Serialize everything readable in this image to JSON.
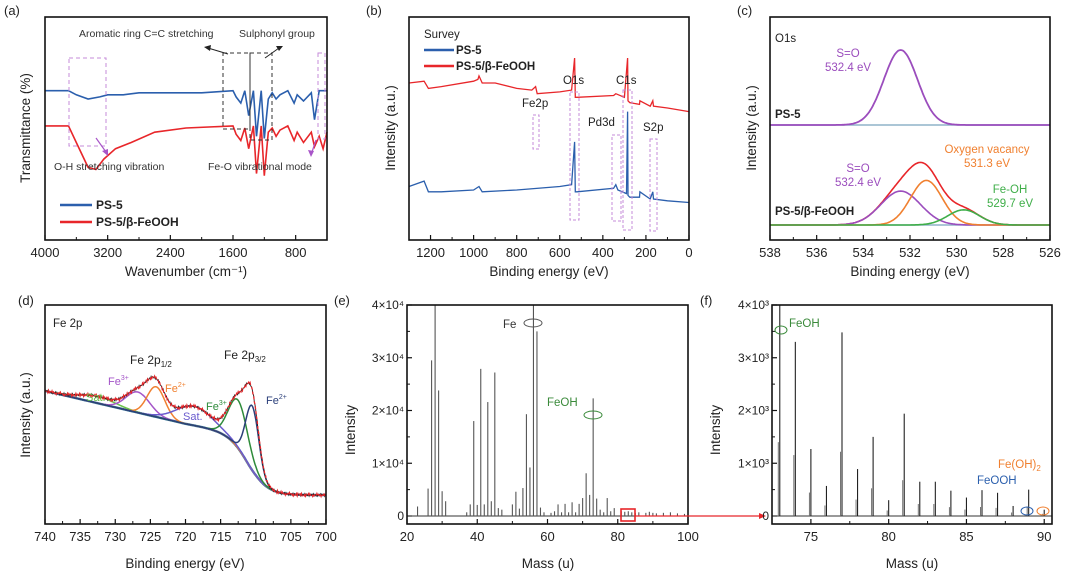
{
  "chart_data": [
    {
      "id": "a",
      "panel_label": "(a)",
      "type": "line",
      "title": "",
      "xlabel": "Wavenumber (cm⁻¹)",
      "ylabel": "Transmittance (%)",
      "xlim": [
        4000,
        400
      ],
      "xticks": [
        4000,
        3200,
        2400,
        1600,
        800
      ],
      "legend": {
        "placement": "bottom-left",
        "entries": [
          {
            "name": "PS-5",
            "color": "#2b5fad"
          },
          {
            "name": "PS-5/β-FeOOH",
            "color": "#e8262a"
          }
        ]
      },
      "series": [
        {
          "name": "PS-5",
          "color": "#2b5fad",
          "x": [
            4000,
            3700,
            3600,
            3450,
            3300,
            3200,
            3000,
            2800,
            2400,
            2000,
            1600,
            1560,
            1500,
            1450,
            1400,
            1340,
            1300,
            1240,
            1200,
            1150,
            1100,
            1050,
            1000,
            900,
            820,
            780,
            700,
            600,
            560,
            500,
            450,
            400
          ],
          "y": [
            0.72,
            0.72,
            0.7,
            0.68,
            0.69,
            0.7,
            0.7,
            0.71,
            0.71,
            0.71,
            0.72,
            0.69,
            0.66,
            0.72,
            0.6,
            0.72,
            0.5,
            0.72,
            0.49,
            0.68,
            0.71,
            0.68,
            0.7,
            0.72,
            0.66,
            0.7,
            0.67,
            0.71,
            0.58,
            0.72,
            0.72,
            0.72
          ]
        },
        {
          "name": "PS-5/β-FeOOH",
          "color": "#e8262a",
          "x": [
            4000,
            3700,
            3600,
            3450,
            3350,
            3250,
            3100,
            2900,
            2600,
            2200,
            1600,
            1560,
            1500,
            1450,
            1400,
            1340,
            1300,
            1240,
            1200,
            1150,
            1100,
            1050,
            1000,
            900,
            820,
            780,
            700,
            600,
            560,
            500,
            450,
            400
          ],
          "y": [
            0.55,
            0.55,
            0.47,
            0.35,
            0.34,
            0.39,
            0.44,
            0.47,
            0.52,
            0.54,
            0.55,
            0.51,
            0.48,
            0.54,
            0.44,
            0.55,
            0.32,
            0.55,
            0.31,
            0.52,
            0.54,
            0.5,
            0.53,
            0.55,
            0.48,
            0.52,
            0.47,
            0.52,
            0.45,
            0.5,
            0.44,
            0.52
          ]
        }
      ],
      "annotations": [
        "Aromatic ring C=C stretching",
        "Sulphonyl group",
        "O-H stretching vibration",
        "Fe-O vibrational mode"
      ]
    },
    {
      "id": "b",
      "panel_label": "(b)",
      "type": "line",
      "title": "Survey",
      "xlabel": "Binding energy (eV)",
      "ylabel": "Intensity (a.u.)",
      "xlim": [
        1300,
        0
      ],
      "xticks": [
        1200,
        1000,
        800,
        600,
        400,
        200,
        0
      ],
      "legend": {
        "placement": "top-left",
        "entries": [
          {
            "name": "PS-5",
            "color": "#2b5fad"
          },
          {
            "name": "PS-5/β-FeOOH",
            "color": "#e8262a"
          }
        ]
      },
      "series": [
        {
          "name": "PS-5",
          "color": "#2b5fad",
          "x": [
            1300,
            1230,
            1210,
            1150,
            1000,
            975,
            960,
            800,
            600,
            545,
            531,
            528,
            520,
            350,
            340,
            330,
            290,
            285,
            283,
            275,
            230,
            228,
            180,
            168,
            165,
            100,
            0
          ],
          "y": [
            0.3,
            0.33,
            0.27,
            0.27,
            0.28,
            0.3,
            0.27,
            0.28,
            0.3,
            0.31,
            0.55,
            0.27,
            0.27,
            0.29,
            0.31,
            0.28,
            0.26,
            0.72,
            0.25,
            0.24,
            0.24,
            0.27,
            0.23,
            0.27,
            0.23,
            0.22,
            0.21
          ]
        },
        {
          "name": "PS-5/β-FeOOH",
          "color": "#e8262a",
          "x": [
            1300,
            1230,
            1210,
            1150,
            1000,
            980,
            975,
            960,
            900,
            800,
            730,
            712,
            705,
            600,
            545,
            531,
            528,
            520,
            350,
            340,
            300,
            285,
            283,
            275,
            230,
            228,
            180,
            168,
            165,
            100,
            0
          ],
          "y": [
            0.88,
            0.89,
            0.85,
            0.86,
            0.89,
            0.9,
            0.92,
            0.88,
            0.88,
            0.85,
            0.84,
            0.86,
            0.82,
            0.83,
            0.84,
            1.02,
            0.8,
            0.8,
            0.81,
            0.82,
            0.8,
            1.02,
            0.78,
            0.77,
            0.76,
            0.78,
            0.75,
            0.78,
            0.75,
            0.74,
            0.72
          ]
        }
      ],
      "annotations": [
        "Fe2p",
        "O1s",
        "Pd3d",
        "C1s",
        "S2p"
      ]
    },
    {
      "id": "c",
      "panel_label": "(c)",
      "type": "line",
      "title": "O1s",
      "xlabel": "Binding energy (eV)",
      "ylabel": "Intensity (a.u.)",
      "xlim": [
        538,
        526
      ],
      "xticks": [
        538,
        536,
        534,
        532,
        530,
        528,
        526
      ],
      "series": [
        {
          "name": "PS-5 S=O",
          "color": "#9b4dbd",
          "center": 532.4,
          "height": 0.82,
          "fwhm": 1.7
        },
        {
          "name": "PS-5/β-FeOOH S=O",
          "color": "#9b4dbd",
          "center": 532.4,
          "height": 0.38,
          "fwhm": 2.0
        },
        {
          "name": "PS-5/β-FeOOH Oxygen vacancy",
          "color": "#f08030",
          "center": 531.3,
          "height": 0.5,
          "fwhm": 1.6
        },
        {
          "name": "PS-5/β-FeOOH Fe-OH",
          "color": "#3fae49",
          "center": 529.7,
          "height": 0.17,
          "fwhm": 1.6
        }
      ],
      "annotations": [
        {
          "text": "S=O",
          "sub": "532.4 eV",
          "color": "#9b4dbd"
        },
        {
          "text": "Oxygen vacancy",
          "sub": "531.3 eV",
          "color": "#f08030"
        },
        {
          "text": "S=O",
          "sub": "532.4 eV",
          "color": "#9b4dbd"
        },
        {
          "text": "Fe-OH",
          "sub": "529.7 eV",
          "color": "#3fae49"
        }
      ],
      "sample_labels": [
        "PS-5",
        "PS-5/β-FeOOH"
      ]
    },
    {
      "id": "d",
      "panel_label": "(d)",
      "type": "line",
      "title": "Fe 2p",
      "xlabel": "Binding energy (eV)",
      "ylabel": "Intensity (a.u.)",
      "xlim": [
        740,
        700
      ],
      "xticks": [
        740,
        735,
        730,
        725,
        720,
        715,
        710,
        705,
        700
      ],
      "series": [
        {
          "name": "Sat. (2p1/2)",
          "color": "#6cc24a",
          "center": 732.5,
          "height": 0.05,
          "fwhm": 6
        },
        {
          "name": "Fe3+ (2p1/2)",
          "color": "#a455c8",
          "center": 726.8,
          "height": 0.15,
          "fwhm": 4
        },
        {
          "name": "Fe2+ (2p1/2)",
          "color": "#f08030",
          "center": 724.2,
          "height": 0.22,
          "fwhm": 3
        },
        {
          "name": "Sat. (2p3/2)",
          "color": "#6a5acd",
          "center": 718.8,
          "height": 0.14,
          "fwhm": 6
        },
        {
          "name": "Fe3+ (2p3/2)",
          "color": "#2e8b3a",
          "center": 712.5,
          "height": 0.35,
          "fwhm": 3.2
        },
        {
          "name": "Fe2+ (2p3/2)",
          "color": "#2b3f7a",
          "center": 710.5,
          "height": 0.47,
          "fwhm": 2.2
        }
      ],
      "annotations": [
        "Fe 2p1/2",
        "Fe 2p3/2",
        "Fe3+",
        "Fe2+",
        "Sat.",
        "Sat.",
        "Fe3+",
        "Fe2+"
      ]
    },
    {
      "id": "e",
      "panel_label": "(e)",
      "type": "bar",
      "title": "",
      "xlabel": "Mass (u)",
      "ylabel": "Intensity",
      "xlim": [
        20,
        100
      ],
      "ylim": [
        0,
        40000
      ],
      "xticks": [
        20,
        40,
        60,
        80,
        100
      ],
      "yticks": [
        "0",
        "1×10⁴",
        "2×10⁴",
        "3×10⁴",
        "4×10⁴"
      ],
      "x": [
        23,
        26,
        27,
        28,
        29,
        30,
        31,
        37,
        38,
        39,
        40,
        41,
        42,
        43,
        44,
        45,
        46,
        47,
        50,
        51,
        52,
        53,
        54,
        55,
        56,
        57,
        58,
        59,
        61,
        62,
        63,
        64,
        65,
        66,
        67,
        68,
        69,
        70,
        71,
        72,
        73,
        74,
        75,
        76,
        77,
        78,
        79,
        81,
        82,
        83,
        84,
        85,
        86,
        88,
        89,
        90,
        91,
        93,
        95,
        97,
        99
      ],
      "values": [
        1800,
        5200,
        29500,
        40000,
        23800,
        4700,
        2800,
        700,
        2200,
        18000,
        2100,
        27900,
        2200,
        21600,
        2800,
        27200,
        1500,
        1200,
        2200,
        4600,
        1400,
        5300,
        19300,
        9200,
        40000,
        35000,
        1600,
        700,
        600,
        900,
        2200,
        700,
        2300,
        700,
        2600,
        700,
        2300,
        3400,
        8100,
        4000,
        22300,
        3300,
        1200,
        700,
        3400,
        900,
        1500,
        900,
        800,
        900,
        700,
        600,
        700,
        600,
        800,
        600,
        500,
        600,
        700,
        500,
        400
      ],
      "annotations": [
        {
          "text": "Fe",
          "color": "#333333"
        },
        {
          "text": "FeOH",
          "color": "#3a8a3a"
        }
      ]
    },
    {
      "id": "f",
      "panel_label": "(f)",
      "type": "bar",
      "title": "",
      "xlabel": "Mass (u)",
      "ylabel": "Intensity",
      "xlim": [
        72.5,
        90.5
      ],
      "ylim": [
        0,
        4000
      ],
      "xticks": [
        75,
        80,
        85,
        90
      ],
      "yticks": [
        "0",
        "1×10³",
        "2×10³",
        "3×10³",
        "4×10³"
      ],
      "x": [
        73,
        74,
        75,
        76,
        77,
        78,
        79,
        80,
        81,
        82,
        83,
        84,
        85,
        86,
        87,
        88,
        89,
        90
      ],
      "values": [
        4000,
        3300,
        1270,
        570,
        3480,
        890,
        1500,
        300,
        1940,
        650,
        650,
        480,
        350,
        490,
        440,
        190,
        500,
        120
      ],
      "annotations": [
        {
          "text": "FeOH",
          "color": "#3a8a3a"
        },
        {
          "text": "Fe(OH)₂",
          "color": "#f08030"
        },
        {
          "text": "FeOOH",
          "color": "#2b5fad"
        }
      ]
    }
  ],
  "labels": {
    "a": {
      "panel": "(a)",
      "ylabel": "Transmittance (%)",
      "xlabel": "Wavenumber (cm⁻¹)",
      "ann1": "Aromatic ring C=C stretching",
      "ann2": "Sulphonyl group",
      "ann3": "O-H stretching vibration",
      "ann4": "Fe-O vibrational mode",
      "leg1": "PS-5",
      "leg2": "PS-5/β-FeOOH",
      "ticks": [
        "4000",
        "3200",
        "2400",
        "1600",
        "800"
      ]
    },
    "b": {
      "panel": "(b)",
      "ylabel": "Intensity (a.u.)",
      "xlabel": "Binding energy (eV)",
      "title": "Survey",
      "leg1": "PS-5",
      "leg2": "PS-5/β-FeOOH",
      "fe2p": "Fe2p",
      "o1s": "O1s",
      "pd3d": "Pd3d",
      "c1s": "C1s",
      "s2p": "S2p",
      "ticks": [
        "1200",
        "1000",
        "800",
        "600",
        "400",
        "200",
        "0"
      ]
    },
    "c": {
      "panel": "(c)",
      "ylabel": "Intensity (a.u.)",
      "xlabel": "Binding energy (eV)",
      "title": "O1s",
      "so": "S=O",
      "so_e": "532.4 eV",
      "ov": "Oxygen vacancy",
      "ov_e": "531.3 eV",
      "feoh": "Fe-OH",
      "feoh_e": "529.7 eV",
      "s1": "PS-5",
      "s2": "PS-5/β-FeOOH",
      "ticks": [
        "538",
        "536",
        "534",
        "532",
        "530",
        "528",
        "526"
      ]
    },
    "d": {
      "panel": "(d)",
      "ylabel": "Intensity (a.u.)",
      "xlabel": "Binding energy (eV)",
      "title": "Fe 2p",
      "p12": "Fe 2p",
      "p12sub": "1/2",
      "p32": "Fe 2p",
      "p32sub": "3/2",
      "fe3": "Fe",
      "fe3sup": "3+",
      "fe2": "Fe",
      "fe2sup": "2+",
      "sat": "Sat.",
      "ticks": [
        "740",
        "735",
        "730",
        "725",
        "720",
        "715",
        "710",
        "705",
        "700"
      ]
    },
    "e": {
      "panel": "(e)",
      "ylabel": "Intensity",
      "xlabel": "Mass (u)",
      "fe": "Fe",
      "feoh": "FeOH",
      "ticks": [
        "20",
        "40",
        "60",
        "80",
        "100"
      ]
    },
    "f": {
      "panel": "(f)",
      "ylabel": "Intensity",
      "xlabel": "Mass (u)",
      "feoh": "FeOH",
      "feoh2": "Fe(OH)",
      "feoh2sub": "2",
      "feooh": "FeOOH",
      "ticks": [
        "75",
        "80",
        "85",
        "90"
      ]
    }
  }
}
